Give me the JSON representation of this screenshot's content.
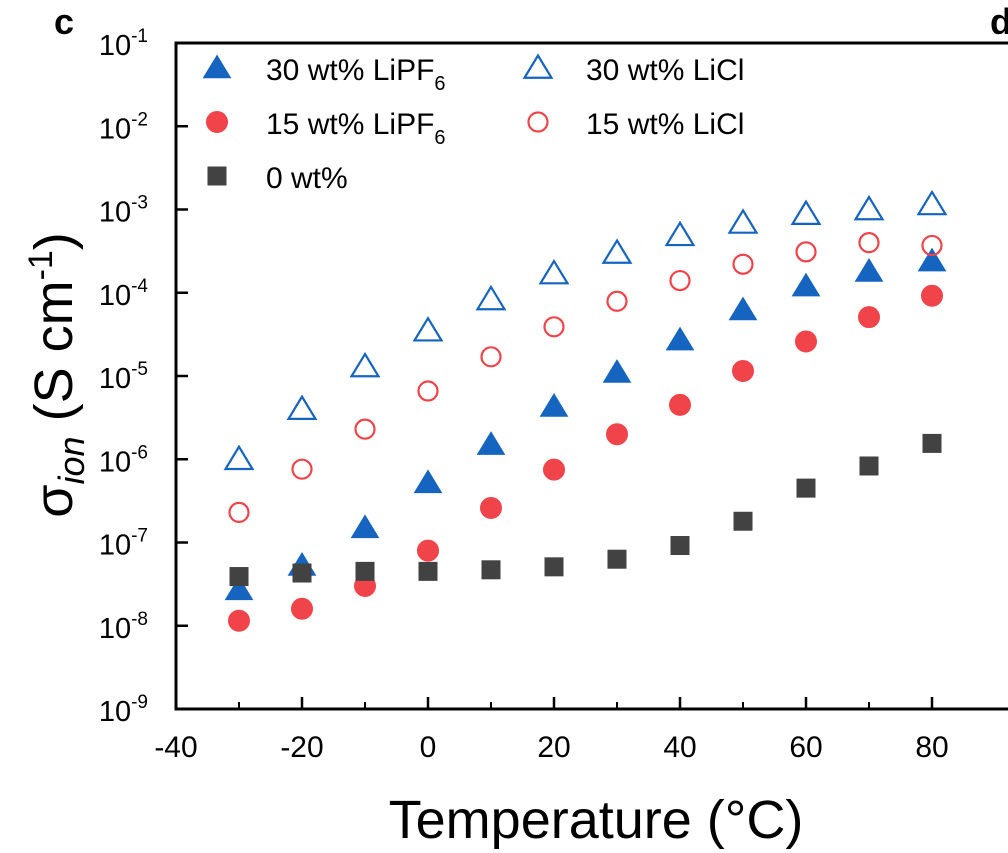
{
  "panel_labels": [
    "c",
    "d"
  ],
  "chart_data": {
    "type": "scatter",
    "xlabel": "Temperature (°C)",
    "ylabel": {
      "symbol": "σ",
      "subscript": "ion",
      "text": " (S cm",
      "superscript": "-1",
      "close": ")"
    },
    "xlim": [
      -40,
      90
    ],
    "ylim": [
      1e-09,
      0.1
    ],
    "yscale": "log",
    "xticks": [
      -40,
      -20,
      0,
      20,
      40,
      60,
      80
    ],
    "yticks": [
      {
        "base": "10",
        "exp": "-9",
        "value": 1e-09
      },
      {
        "base": "10",
        "exp": "-8",
        "value": 1e-08
      },
      {
        "base": "10",
        "exp": "-7",
        "value": 1e-07
      },
      {
        "base": "10",
        "exp": "-6",
        "value": 1e-06
      },
      {
        "base": "10",
        "exp": "-5",
        "value": 1e-05
      },
      {
        "base": "10",
        "exp": "-4",
        "value": 0.0001
      },
      {
        "base": "10",
        "exp": "-3",
        "value": 0.001
      },
      {
        "base": "10",
        "exp": "-2",
        "value": 0.01
      },
      {
        "base": "10",
        "exp": "-1",
        "value": 0.1
      }
    ],
    "legend_position": "top-left",
    "x": [
      -30,
      -20,
      -10,
      0,
      10,
      20,
      30,
      40,
      50,
      60,
      70,
      80
    ],
    "series": [
      {
        "name": "30 wt% LiPF6",
        "legend_text": "30 wt% LiPF",
        "legend_sub": "6",
        "marker": "triangle-filled",
        "color": "#1565c0",
        "values": [
          2.7e-08,
          5.3e-08,
          1.5e-07,
          5.2e-07,
          1.5e-06,
          4.3e-06,
          1.1e-05,
          2.7e-05,
          6.2e-05,
          0.00012,
          0.00018,
          0.00024
        ]
      },
      {
        "name": "15 wt% LiPF6",
        "legend_text": "15 wt% LiPF",
        "legend_sub": "6",
        "marker": "circle-filled",
        "color": "#f0444a",
        "values": [
          1.15e-08,
          1.6e-08,
          3e-08,
          8e-08,
          2.6e-07,
          7.5e-07,
          2e-06,
          4.5e-06,
          1.15e-05,
          2.6e-05,
          5.1e-05,
          9.2e-05
        ]
      },
      {
        "name": "30 wt% LiCl",
        "legend_text": "30 wt% LiCl",
        "legend_sub": "",
        "marker": "triangle-open",
        "color": "#1565c0",
        "values": [
          1e-06,
          4e-06,
          1.3e-05,
          3.5e-05,
          8.3e-05,
          0.00017,
          0.0003,
          0.00049,
          0.00069,
          0.00088,
          0.001,
          0.00115
        ]
      },
      {
        "name": "15 wt% LiCl",
        "legend_text": "15 wt% LiCl",
        "legend_sub": "",
        "marker": "circle-open",
        "color": "#f0444a",
        "values": [
          2.3e-07,
          7.6e-07,
          2.3e-06,
          6.6e-06,
          1.7e-05,
          3.9e-05,
          7.9e-05,
          0.00014,
          0.00022,
          0.00031,
          0.0004,
          0.00037
        ]
      },
      {
        "name": "0 wt%",
        "legend_text": "0 wt%",
        "legend_sub": "",
        "marker": "square-filled",
        "color": "#424242",
        "values": [
          3.9e-08,
          4.3e-08,
          4.5e-08,
          4.5e-08,
          4.7e-08,
          5.1e-08,
          6.3e-08,
          9.2e-08,
          1.8e-07,
          4.5e-07,
          8.3e-07,
          1.55e-06
        ]
      }
    ]
  }
}
